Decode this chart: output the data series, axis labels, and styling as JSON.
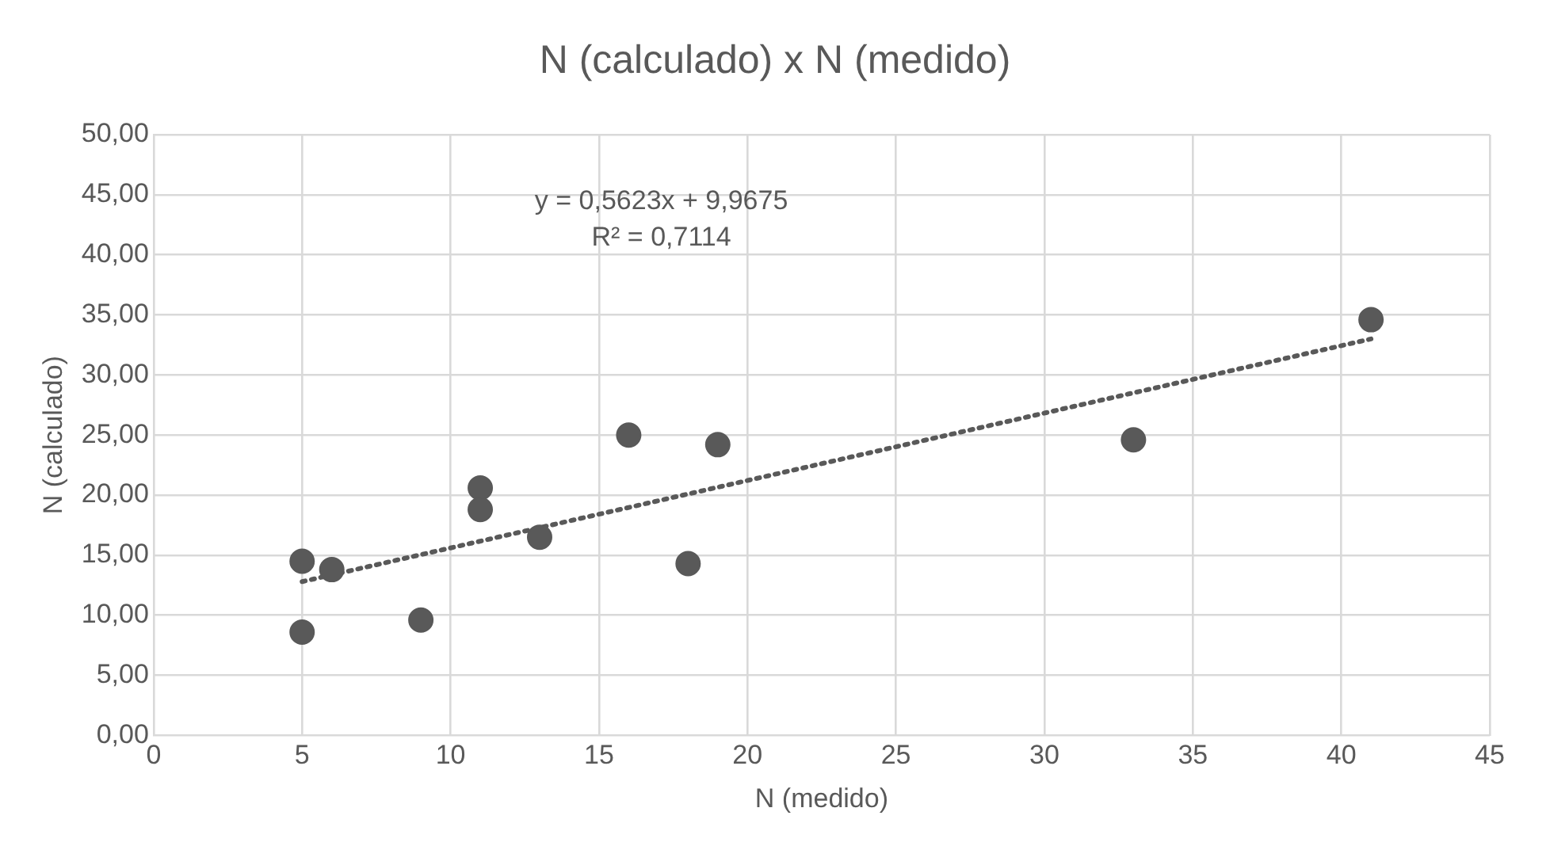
{
  "chart_data": {
    "type": "scatter",
    "title": "N (calculado) x N (medido)",
    "xlabel": "N (medido)",
    "ylabel": "N (calculado)",
    "annotations": [
      "y = 0,5623x + 9,9675",
      "R² = 0,7114"
    ],
    "series": [
      {
        "type": "scatter",
        "color": "#595959",
        "marker": "circle",
        "x": [
          5,
          5,
          6,
          9,
          11,
          11,
          13,
          16,
          18,
          19,
          33,
          41
        ],
        "values": [
          14.5,
          8.6,
          13.8,
          9.6,
          20.6,
          18.8,
          16.5,
          25.0,
          14.3,
          24.2,
          24.6,
          34.6
        ]
      },
      {
        "type": "line",
        "color": "#595959",
        "line_style": "dotted",
        "marker": "none",
        "x": [
          5,
          41
        ],
        "values": [
          12.8,
          33.0
        ]
      }
    ],
    "xlim": [
      0,
      45
    ],
    "xticks": [
      0,
      5,
      10,
      15,
      20,
      25,
      30,
      35,
      40,
      45
    ],
    "ylim": [
      0,
      50
    ],
    "yticks": [
      {
        "value": 0,
        "label": "0,00"
      },
      {
        "value": 5,
        "label": "5,00"
      },
      {
        "value": 10,
        "label": "10,00"
      },
      {
        "value": 15,
        "label": "15,00"
      },
      {
        "value": 20,
        "label": "20,00"
      },
      {
        "value": 25,
        "label": "25,00"
      },
      {
        "value": 30,
        "label": "30,00"
      },
      {
        "value": 35,
        "label": "35,00"
      },
      {
        "value": 40,
        "label": "40,00"
      },
      {
        "value": 45,
        "label": "45,00"
      },
      {
        "value": 50,
        "label": "50,00"
      }
    ],
    "grid": true,
    "legend": false
  }
}
